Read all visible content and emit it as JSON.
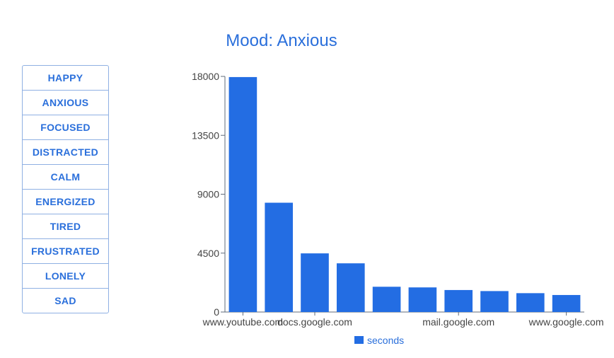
{
  "title": "Mood: Anxious",
  "moods": [
    "HAPPY",
    "ANXIOUS",
    "FOCUSED",
    "DISTRACTED",
    "CALM",
    "ENERGIZED",
    "TIRED",
    "FRUSTRATED",
    "LONELY",
    "SAD"
  ],
  "colors": {
    "accent": "#2a6fdb",
    "bar": "#236de3",
    "border": "#8fb0e3"
  },
  "chart_data": {
    "type": "bar",
    "ylim": [
      0,
      18000
    ],
    "yticks": [
      "18000",
      "13500",
      "9000",
      "4500",
      "0"
    ],
    "categories": [
      "www.youtube.com",
      "",
      "docs.google.com",
      "",
      "",
      "",
      "mail.google.com",
      "",
      "",
      "www.google.com"
    ],
    "series": [
      {
        "name": "seconds",
        "values": [
          17950,
          8350,
          4480,
          3720,
          1930,
          1880,
          1680,
          1600,
          1440,
          1300
        ]
      }
    ],
    "legend": "bottom",
    "grid": false
  }
}
